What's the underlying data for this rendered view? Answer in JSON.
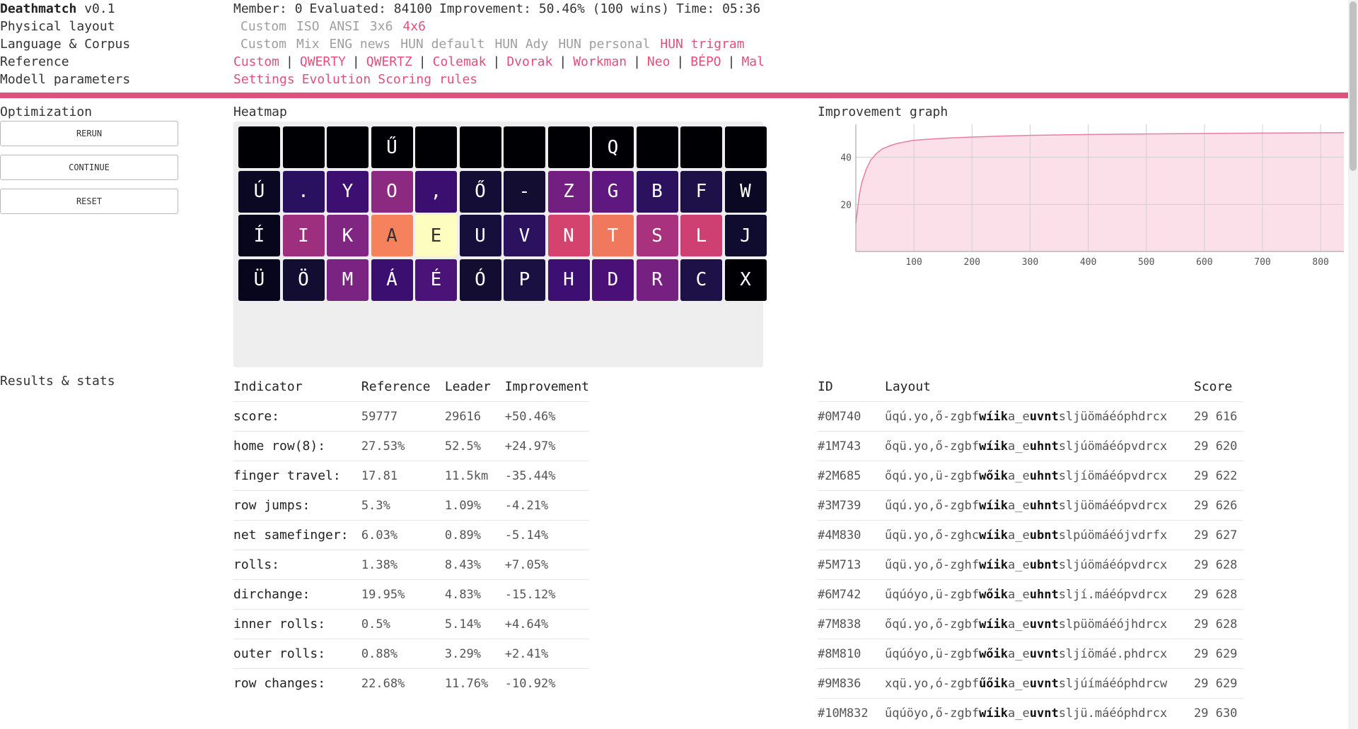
{
  "app": {
    "title": "Deathmatch",
    "version": "v0.1"
  },
  "nav": {
    "labels": [
      "Physical layout",
      "Language & Corpus",
      "Reference",
      "Modell parameters"
    ],
    "status": {
      "member": "Member: 0",
      "evaluated": "Evaluated: 84100",
      "improvement": "Improvement: 50.46% (100 wins)",
      "time": "Time: 05:36"
    },
    "physical_layout_options": [
      {
        "label": "Custom",
        "active": false
      },
      {
        "label": "ISO",
        "active": false
      },
      {
        "label": "ANSI",
        "active": false
      },
      {
        "label": "3x6",
        "active": false
      },
      {
        "label": "4x6",
        "active": true
      }
    ],
    "corpus_options": [
      {
        "label": "Custom",
        "active": false
      },
      {
        "label": "Mix",
        "active": false
      },
      {
        "label": "ENG news",
        "active": false
      },
      {
        "label": "HUN default",
        "active": false
      },
      {
        "label": "HUN Ady",
        "active": false
      },
      {
        "label": "HUN personal",
        "active": false
      },
      {
        "label": "HUN trigram",
        "active": true
      }
    ],
    "reference_options": [
      "Custom",
      "QWERTY",
      "QWERTZ",
      "Colemak",
      "Dvorak",
      "Workman",
      "Neo",
      "BÉPO",
      "Mal"
    ],
    "reference_separator": "|",
    "model_options": [
      "Settings",
      "Evolution",
      "Scoring rules"
    ]
  },
  "optimization": {
    "label": "Optimization",
    "buttons": {
      "rerun": "RERUN",
      "continue": "CONTINUE",
      "reset": "RESET"
    }
  },
  "heatmap": {
    "label": "Heatmap",
    "rows": [
      [
        {
          "char": "",
          "color": "#000004"
        },
        {
          "char": "",
          "color": "#000004"
        },
        {
          "char": "",
          "color": "#000004"
        },
        {
          "char": "Ű",
          "color": "#000004"
        },
        {
          "char": "",
          "color": "#000004"
        },
        {
          "char": "",
          "color": "#000004"
        },
        {
          "char": "",
          "color": "#000004"
        },
        {
          "char": "",
          "color": "#000004"
        },
        {
          "char": "Q",
          "color": "#000004"
        },
        {
          "char": "",
          "color": "#000004"
        },
        {
          "char": "",
          "color": "#000004"
        },
        {
          "char": "",
          "color": "#000004"
        }
      ],
      [
        {
          "char": "Ú",
          "color": "#0a0822"
        },
        {
          "char": ".",
          "color": "#2a1160"
        },
        {
          "char": "Y",
          "color": "#3d0f70"
        },
        {
          "char": "O",
          "color": "#8c2981"
        },
        {
          "char": ",",
          "color": "#3b0f70"
        },
        {
          "char": "Ő",
          "color": "#140e36"
        },
        {
          "char": "-",
          "color": "#120d31"
        },
        {
          "char": "Z",
          "color": "#721f81"
        },
        {
          "char": "G",
          "color": "#5f187f"
        },
        {
          "char": "B",
          "color": "#2c115f"
        },
        {
          "char": "F",
          "color": "#1d1147"
        },
        {
          "char": "W",
          "color": "#0a0822"
        }
      ],
      [
        {
          "char": "Í",
          "color": "#07061c"
        },
        {
          "char": "I",
          "color": "#9e2f7f"
        },
        {
          "char": "K",
          "color": "#802582"
        },
        {
          "char": "A",
          "color": "#f5825c"
        },
        {
          "char": "E",
          "color": "#fcfdbf"
        },
        {
          "char": "U",
          "color": "#160f3b"
        },
        {
          "char": "V",
          "color": "#2b115e"
        },
        {
          "char": "N",
          "color": "#d3436e"
        },
        {
          "char": "T",
          "color": "#f0785c"
        },
        {
          "char": "S",
          "color": "#a8327d"
        },
        {
          "char": "L",
          "color": "#cd4071"
        },
        {
          "char": "J",
          "color": "#100c2f"
        }
      ],
      [
        {
          "char": "Ü",
          "color": "#07061c"
        },
        {
          "char": "Ö",
          "color": "#120d31"
        },
        {
          "char": "M",
          "color": "#7a2382"
        },
        {
          "char": "Á",
          "color": "#3b0f70"
        },
        {
          "char": "É",
          "color": "#4b1278"
        },
        {
          "char": "Ó",
          "color": "#120d31"
        },
        {
          "char": "P",
          "color": "#1a1042"
        },
        {
          "char": "H",
          "color": "#3e0f72"
        },
        {
          "char": "D",
          "color": "#4a1078"
        },
        {
          "char": "R",
          "color": "#762181"
        },
        {
          "char": "C",
          "color": "#1d1147"
        },
        {
          "char": "X",
          "color": "#000004"
        }
      ]
    ]
  },
  "graph": {
    "label": "Improvement graph",
    "chart_data": {
      "type": "area",
      "xlabel": "",
      "ylabel": "",
      "x_ticks": [
        100,
        200,
        300,
        400,
        500,
        600,
        700,
        800
      ],
      "y_ticks": [
        20,
        40
      ],
      "xlim": [
        0,
        840
      ],
      "ylim": [
        0,
        54
      ],
      "fill_color": "#fbe0ea",
      "line_color": "#e87ea3",
      "x": [
        0,
        3,
        6,
        10,
        14,
        18,
        22,
        26,
        30,
        35,
        40,
        45,
        50,
        60,
        70,
        80,
        90,
        100,
        120,
        140,
        160,
        200,
        250,
        300,
        350,
        400,
        500,
        600,
        700,
        800,
        840
      ],
      "y": [
        12,
        18,
        24,
        29,
        32,
        35,
        37,
        39,
        40,
        41.5,
        42.5,
        43.5,
        44,
        45,
        45.8,
        46.3,
        46.8,
        47.2,
        47.6,
        47.9,
        48.2,
        48.6,
        49,
        49.3,
        49.5,
        49.7,
        49.9,
        50.1,
        50.3,
        50.4,
        50.46
      ]
    }
  },
  "results": {
    "label": "Results & stats",
    "stats_headers": [
      "Indicator",
      "Reference",
      "Leader",
      "Improvement"
    ],
    "stats": [
      {
        "indicator": "score:",
        "reference": "59777",
        "leader": "29616",
        "improvement": "+50.46%"
      },
      {
        "indicator": "home row(8):",
        "reference": "27.53%",
        "leader": "52.5%",
        "improvement": "+24.97%"
      },
      {
        "indicator": "finger travel:",
        "reference": "17.81",
        "leader": "11.5km",
        "improvement": "-35.44%"
      },
      {
        "indicator": "row jumps:",
        "reference": "5.3%",
        "leader": "1.09%",
        "improvement": "-4.21%"
      },
      {
        "indicator": "net samefinger:",
        "reference": "6.03%",
        "leader": "0.89%",
        "improvement": "-5.14%"
      },
      {
        "indicator": "rolls:",
        "reference": "1.38%",
        "leader": "8.43%",
        "improvement": "+7.05%"
      },
      {
        "indicator": "dirchange:",
        "reference": "19.95%",
        "leader": "4.83%",
        "improvement": "-15.12%"
      },
      {
        "indicator": "inner rolls:",
        "reference": "0.5%",
        "leader": "5.14%",
        "improvement": "+4.64%"
      },
      {
        "indicator": "outer rolls:",
        "reference": "0.88%",
        "leader": "3.29%",
        "improvement": "+2.41%"
      },
      {
        "indicator": "row changes:",
        "reference": "22.68%",
        "leader": "11.76%",
        "improvement": "-10.92%"
      }
    ],
    "table_headers": [
      "ID",
      "Layout",
      "Score"
    ],
    "rows": [
      {
        "id": "#0M740",
        "layout_pre": "űqú.yo,ő-zgbf",
        "layout_bold1": "wíik",
        "layout_mid": "a_e",
        "layout_bold2": "uvnt",
        "layout_post": "sljüömáéóphdrcx",
        "score": "29 616"
      },
      {
        "id": "#1M743",
        "layout_pre": "őqü.yo,ő-zgbf",
        "layout_bold1": "wíik",
        "layout_mid": "a_e",
        "layout_bold2": "uhnt",
        "layout_post": "sljúömáéópvdrcx",
        "score": "29 620"
      },
      {
        "id": "#2M685",
        "layout_pre": "őqú.yo,ü-zgbf",
        "layout_bold1": "wőik",
        "layout_mid": "a_e",
        "layout_bold2": "uhnt",
        "layout_post": "sljíömáéópvdrcx",
        "score": "29 622"
      },
      {
        "id": "#3M739",
        "layout_pre": "űqú.yo,ő-zgbf",
        "layout_bold1": "wíik",
        "layout_mid": "a_e",
        "layout_bold2": "uhnt",
        "layout_post": "sljüömáéópvdrcx",
        "score": "29 626"
      },
      {
        "id": "#4M830",
        "layout_pre": "űqü.yo,ő-zghc",
        "layout_bold1": "wíik",
        "layout_mid": "a_e",
        "layout_bold2": "ubnt",
        "layout_post": "slpúömáéójvdrfx",
        "score": "29 627"
      },
      {
        "id": "#5M713",
        "layout_pre": "űqü.yo,ő-zghf",
        "layout_bold1": "wíik",
        "layout_mid": "a_e",
        "layout_bold2": "ubnt",
        "layout_post": "sljúömáéópvdrcx",
        "score": "29 628"
      },
      {
        "id": "#6M742",
        "layout_pre": "űqúóyo,ü-zgbf",
        "layout_bold1": "wőik",
        "layout_mid": "a_e",
        "layout_bold2": "uhnt",
        "layout_post": "sljí.máéópvdrcx",
        "score": "29 628"
      },
      {
        "id": "#7M838",
        "layout_pre": "őqú.yo,ő-zgbf",
        "layout_bold1": "wíik",
        "layout_mid": "a_e",
        "layout_bold2": "uvnt",
        "layout_post": "slpüömáéójhdrcx",
        "score": "29 628"
      },
      {
        "id": "#8M810",
        "layout_pre": "űqúóyo,ü-zgbf",
        "layout_bold1": "wőik",
        "layout_mid": "a_e",
        "layout_bold2": "uvnt",
        "layout_post": "sljíömáé.phdrcx",
        "score": "29 629"
      },
      {
        "id": "#9M836",
        "layout_pre": "xqü.yo,ó-zgbf",
        "layout_bold1": "űőik",
        "layout_mid": "a_e",
        "layout_bold2": "uvnt",
        "layout_post": "sljúímáéóphdrcw",
        "score": "29 629"
      },
      {
        "id": "#10M832",
        "layout_pre": "űqúöyo,ő-zgbf",
        "layout_bold1": "wíik",
        "layout_mid": "a_e",
        "layout_bold2": "uvnt",
        "layout_post": "slјü.máéóphdrcx",
        "score": "29 630"
      }
    ]
  },
  "colors": {
    "accent": "#e0507a",
    "muted": "#9e9e9e",
    "panel": "#eeeeee"
  }
}
